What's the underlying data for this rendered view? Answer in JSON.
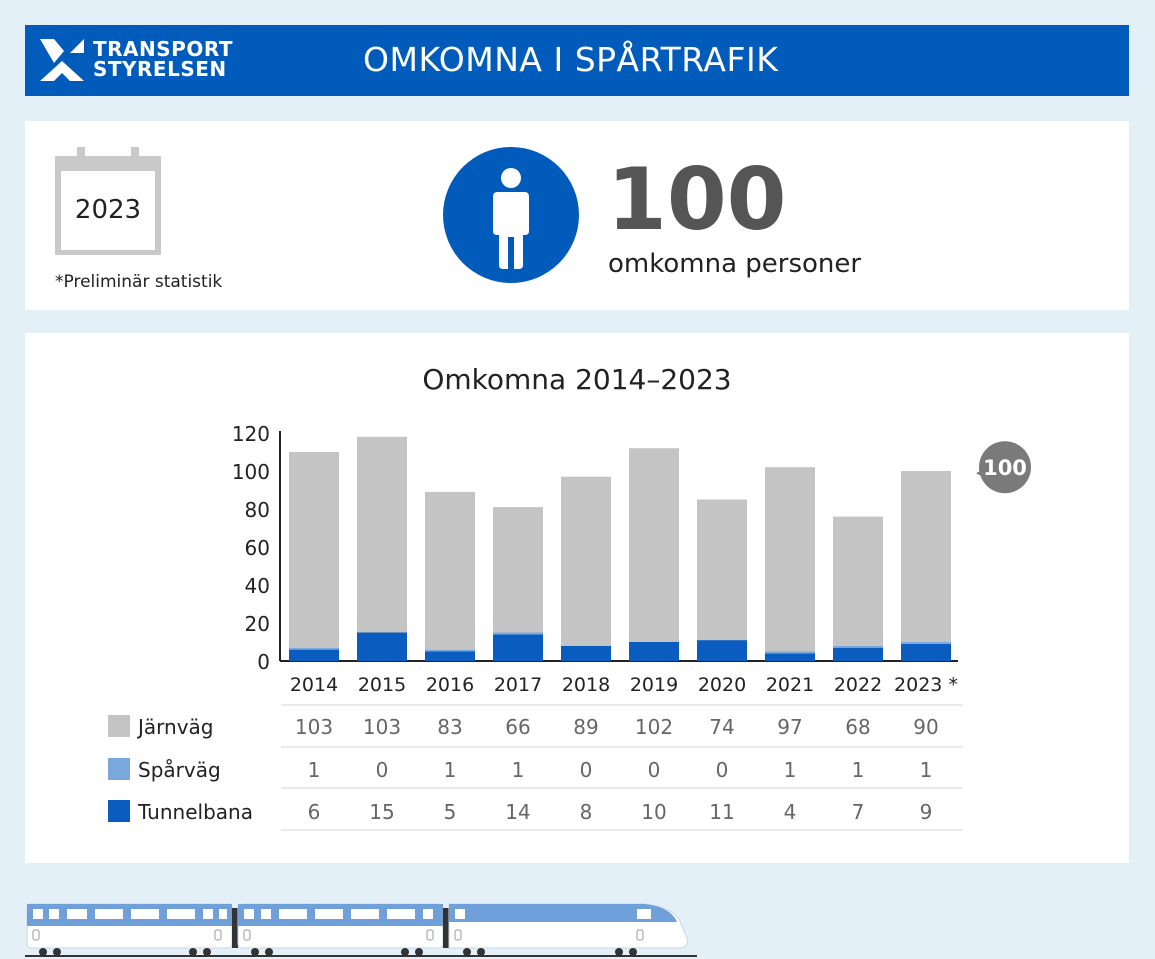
{
  "header": {
    "logo_line1": "TRANSPORT",
    "logo_line2": "STYRELSEN",
    "title": "OMKOMNA I SPÅRTRAFIK"
  },
  "summary": {
    "year": "2023",
    "note": "*Preliminär statistik",
    "total": "100",
    "total_label": "omkomna personer"
  },
  "colors": {
    "header_bg": "#005bbb",
    "jarnvag": "#c4c4c4",
    "sparvag": "#7aa8dc",
    "tunnelbana": "#0a5cbe",
    "callout": "#7a7a7a"
  },
  "chart_data": {
    "type": "bar",
    "stacked": true,
    "title": "Omkomna 2014–2023",
    "categories": [
      "2014",
      "2015",
      "2016",
      "2017",
      "2018",
      "2019",
      "2020",
      "2021",
      "2022",
      "2023 *"
    ],
    "ylim": [
      0,
      120
    ],
    "yticks": [
      0,
      20,
      40,
      60,
      80,
      100,
      120
    ],
    "series": [
      {
        "name": "Tunnelbana",
        "values": [
          6,
          15,
          5,
          14,
          8,
          10,
          11,
          4,
          7,
          9
        ]
      },
      {
        "name": "Spårväg",
        "values": [
          1,
          0,
          1,
          1,
          0,
          0,
          0,
          1,
          1,
          1
        ]
      },
      {
        "name": "Järnväg",
        "values": [
          103,
          103,
          83,
          66,
          89,
          102,
          74,
          97,
          68,
          90
        ]
      }
    ],
    "callout": "100",
    "grid": false
  },
  "table": {
    "rows": [
      {
        "name": "Järnväg",
        "values": [
          "103",
          "103",
          "83",
          "66",
          "89",
          "102",
          "74",
          "97",
          "68",
          "90"
        ]
      },
      {
        "name": "Spårväg",
        "values": [
          "1",
          "0",
          "1",
          "1",
          "0",
          "0",
          "0",
          "1",
          "1",
          "1"
        ]
      },
      {
        "name": "Tunnelbana",
        "values": [
          "6",
          "15",
          "5",
          "14",
          "8",
          "10",
          "11",
          "4",
          "7",
          "9"
        ]
      }
    ]
  }
}
